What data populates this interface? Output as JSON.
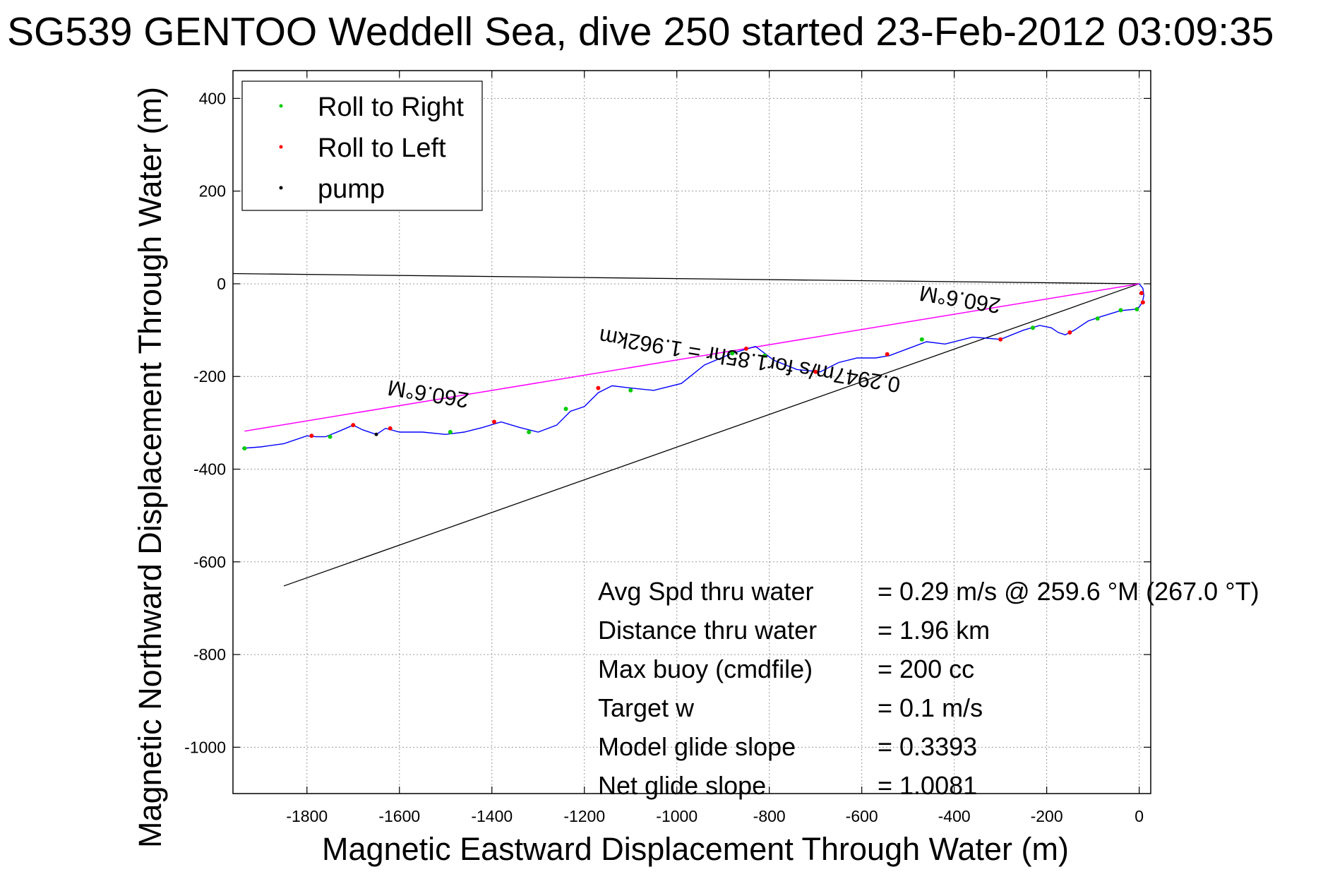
{
  "colors": {
    "background": "#ffffff",
    "axes": "#000000",
    "grid": "#9a9a9a",
    "track": "#0000ff",
    "roll_right": "#00cc00",
    "roll_left": "#ff0000",
    "pump": "#000000",
    "heading_line": "#ff00ff",
    "boundary_lines": "#000000"
  },
  "chart_data": {
    "type": "line",
    "title": "SG539 GENTOO Weddell Sea, dive 250 started 23-Feb-2012 03:09:35",
    "xlabel": "Magnetic Eastward Displacement Through Water (m)",
    "ylabel": "Magnetic Northward Displacement Through Water (m)",
    "xlim": [
      -1960,
      25
    ],
    "ylim": [
      -1100,
      460
    ],
    "x_ticks": [
      -1800,
      -1600,
      -1400,
      -1200,
      -1000,
      -800,
      -600,
      -400,
      -200,
      0
    ],
    "y_ticks": [
      400,
      200,
      0,
      -200,
      -400,
      -600,
      -800,
      -1000
    ],
    "grid": true,
    "legend_position": "top-left",
    "legend": [
      {
        "label": "Roll to Right",
        "color": "#00cc00"
      },
      {
        "label": "Roll to Left",
        "color": "#ff0000"
      },
      {
        "label": "pump",
        "color": "#000000"
      }
    ],
    "series": [
      {
        "name": "track",
        "color": "#0000ff",
        "x": [
          0,
          8,
          10,
          7,
          0,
          -10,
          -40,
          -80,
          -110,
          -140,
          -160,
          -175,
          -190,
          -215,
          -250,
          -300,
          -360,
          -420,
          -460,
          -500,
          -540,
          -570,
          -610,
          -650,
          -690,
          -740,
          -790,
          -830,
          -880,
          -940,
          -990,
          -1050,
          -1100,
          -1140,
          -1170,
          -1200,
          -1230,
          -1260,
          -1300,
          -1340,
          -1380,
          -1420,
          -1460,
          -1500,
          -1550,
          -1600,
          -1630,
          -1650,
          -1680,
          -1700,
          -1730,
          -1760,
          -1780,
          -1800,
          -1850,
          -1900,
          -1940
        ],
        "y": [
          0,
          -10,
          -25,
          -40,
          -50,
          -55,
          -58,
          -70,
          -80,
          -100,
          -110,
          -105,
          -95,
          -90,
          -100,
          -120,
          -115,
          -130,
          -125,
          -140,
          -155,
          -160,
          -160,
          -170,
          -190,
          -185,
          -165,
          -135,
          -150,
          -175,
          -215,
          -230,
          -225,
          -220,
          -235,
          -265,
          -275,
          -305,
          -320,
          -310,
          -298,
          -310,
          -320,
          -325,
          -320,
          -320,
          -312,
          -325,
          -315,
          -305,
          -318,
          -330,
          -330,
          -328,
          -345,
          -352,
          -355
        ]
      }
    ],
    "roll_right_points": [
      [
        -5,
        -55
      ],
      [
        -40,
        -57
      ],
      [
        -90,
        -75
      ],
      [
        -230,
        -95
      ],
      [
        -470,
        -120
      ],
      [
        -810,
        -155
      ],
      [
        -880,
        -150
      ],
      [
        -1100,
        -230
      ],
      [
        -1240,
        -270
      ],
      [
        -1320,
        -320
      ],
      [
        -1490,
        -320
      ],
      [
        -1750,
        -330
      ],
      [
        -1935,
        -355
      ]
    ],
    "roll_left_points": [
      [
        5,
        -20
      ],
      [
        8,
        -40
      ],
      [
        -150,
        -105
      ],
      [
        -300,
        -120
      ],
      [
        -545,
        -152
      ],
      [
        -700,
        -190
      ],
      [
        -850,
        -140
      ],
      [
        -1170,
        -225
      ],
      [
        -1395,
        -298
      ],
      [
        -1620,
        -312
      ],
      [
        -1700,
        -305
      ],
      [
        -1790,
        -328
      ]
    ],
    "pump_points": [
      [
        -1650,
        -325
      ]
    ],
    "heading_line": {
      "label": "260.6°M",
      "start": [
        0,
        0
      ],
      "end": [
        -1935,
        -318
      ],
      "color": "#ff00ff"
    },
    "boundary_lines": [
      {
        "start": [
          0,
          0
        ],
        "end": [
          -1960,
          22
        ]
      },
      {
        "start": [
          0,
          0
        ],
        "end": [
          -1850,
          -652
        ]
      }
    ],
    "annotations": [
      {
        "text": "260.6°M",
        "x": -1535,
        "y": -222,
        "angle_deg": 189.3
      },
      {
        "text": "260.6°M",
        "x": -385,
        "y": -18,
        "angle_deg": 189.3
      },
      {
        "text": "0.2947m/s for1.85hr = 1.962km",
        "x": -840,
        "y": -150,
        "angle_deg": 189.3
      }
    ],
    "stats": [
      {
        "label": "Avg Spd thru water",
        "value": "=  0.29 m/s @ 259.6 °M (267.0 °T)"
      },
      {
        "label": "Distance thru water",
        "value": "=  1.96 km"
      },
      {
        "label": "Max buoy (cmdfile)",
        "value": "= 200 cc"
      },
      {
        "label": "Target w",
        "value": "= 0.1 m/s"
      },
      {
        "label": "Model glide slope",
        "value": "= 0.3393"
      },
      {
        "label": "Net glide slope",
        "value": "= 1.0081"
      }
    ]
  }
}
